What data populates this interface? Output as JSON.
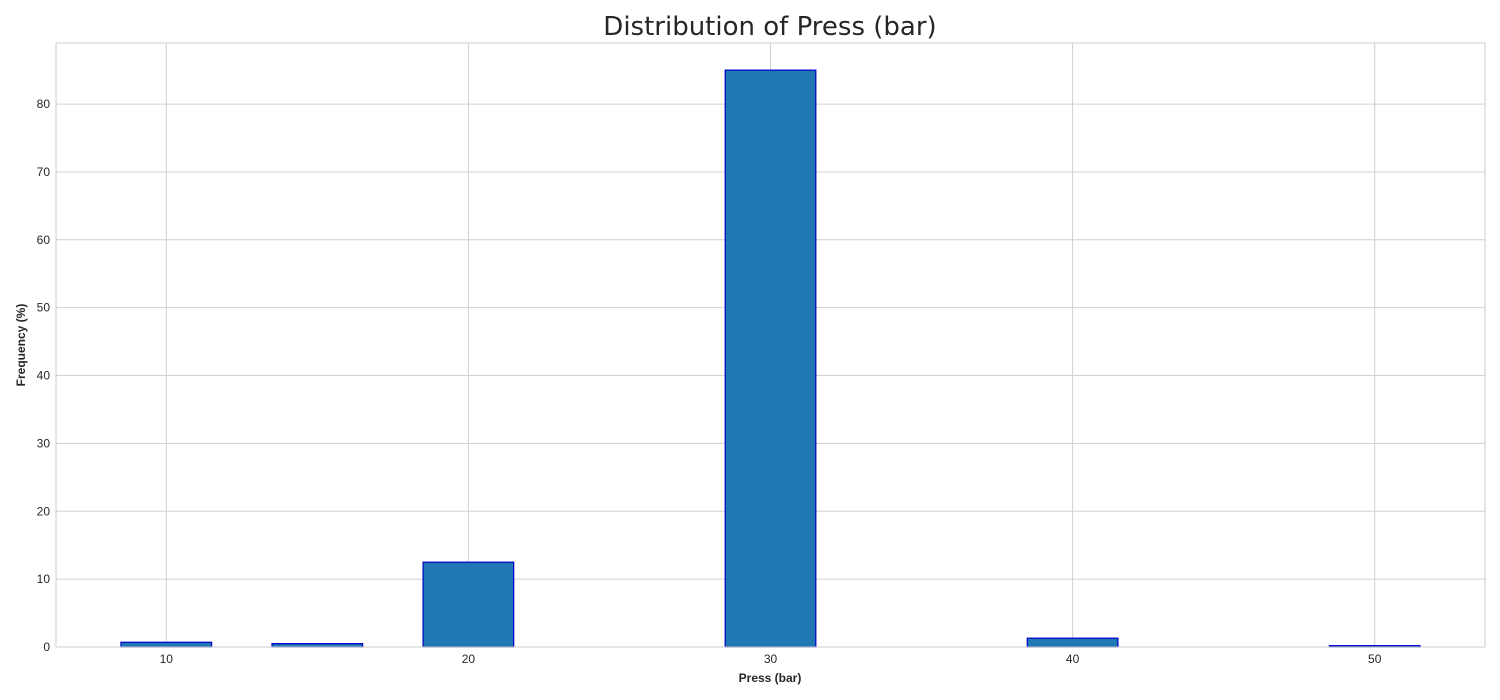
{
  "chart_data": {
    "type": "bar",
    "title": "Distribution of Press (bar)",
    "xlabel": "Press (bar)",
    "ylabel": "Frequency (%)",
    "x": [
      10,
      15,
      20,
      30,
      40,
      50
    ],
    "values": [
      0.7,
      0.5,
      12.5,
      85.0,
      1.3,
      0.2
    ],
    "bar_width": 3,
    "xlim": [
      6.35,
      53.65
    ],
    "ylim": [
      0,
      89
    ],
    "xticks": [
      10,
      20,
      30,
      40,
      50
    ],
    "yticks": [
      0,
      10,
      20,
      30,
      40,
      50,
      60,
      70,
      80
    ],
    "grid": true,
    "bar_color": "#1f77b4",
    "bar_edge_color": "#0000cc"
  }
}
